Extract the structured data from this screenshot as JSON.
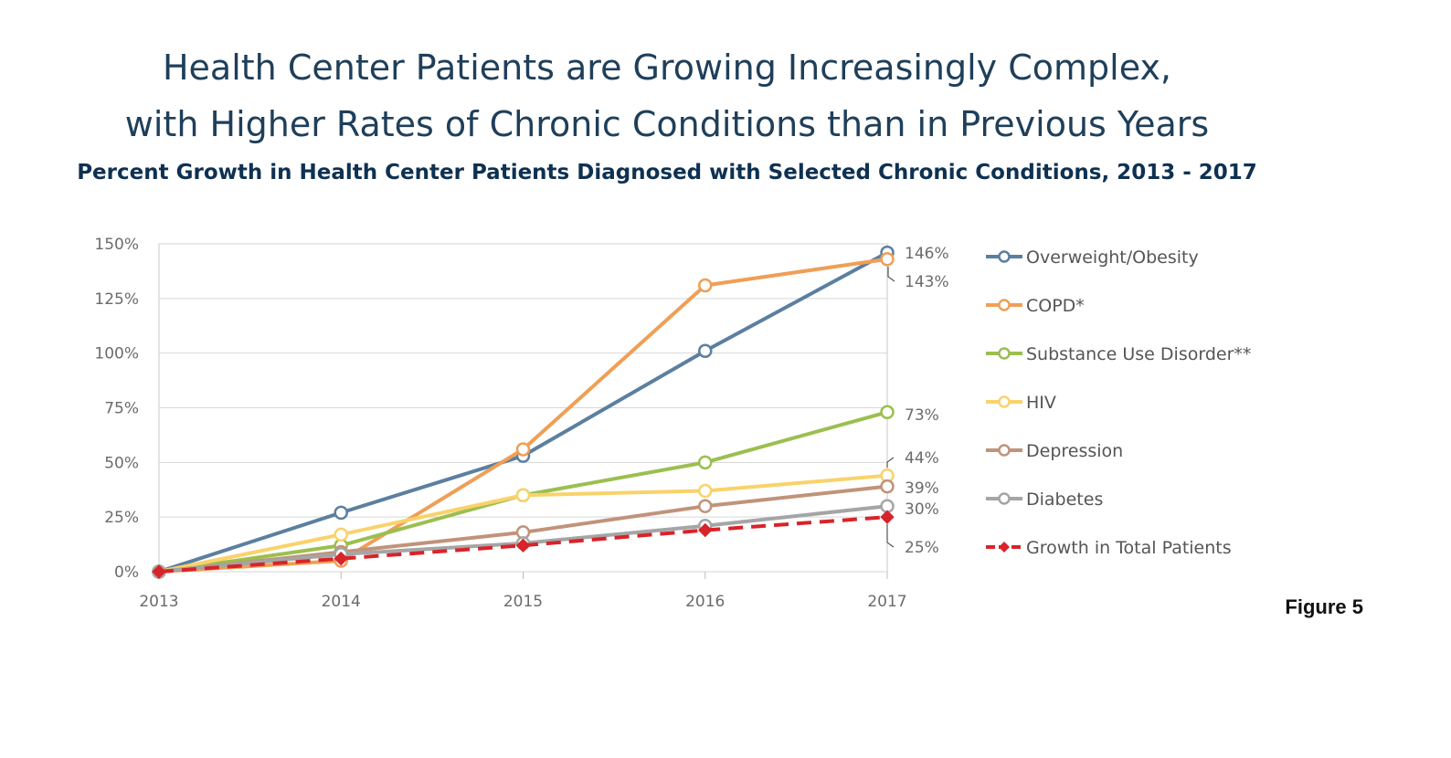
{
  "header": {
    "title_line1": "Health Center Patients are Growing Increasingly Complex,",
    "title_line2": "with Higher Rates of Chronic Conditions than in Previous Years",
    "subtitle": "Percent Growth in Health Center Patients Diagnosed with Selected Chronic Conditions, 2013 - 2017"
  },
  "figure_label": "Figure 5",
  "chart_data": {
    "type": "line",
    "x": [
      "2013",
      "2014",
      "2015",
      "2016",
      "2017"
    ],
    "ylim": [
      0,
      150
    ],
    "yticks": [
      "0%",
      "25%",
      "50%",
      "75%",
      "100%",
      "125%",
      "150%"
    ],
    "grid": true,
    "legend": "right",
    "series": [
      {
        "name": "Overweight/Obesity",
        "color": "#5b7fa0",
        "values": [
          0,
          27,
          53,
          101,
          146
        ],
        "end_label": "146%",
        "marker": "circle",
        "dash": false
      },
      {
        "name": "COPD*",
        "color": "#ef9f55",
        "values": [
          0,
          5,
          56,
          131,
          143
        ],
        "end_label": "143%",
        "marker": "circle",
        "dash": false
      },
      {
        "name": "Substance Use Disorder**",
        "color": "#9bbf4f",
        "values": [
          0,
          12,
          35,
          50,
          73
        ],
        "end_label": "73%",
        "marker": "circle",
        "dash": false
      },
      {
        "name": "HIV",
        "color": "#f9d26a",
        "values": [
          0,
          17,
          35,
          37,
          44
        ],
        "end_label": "44%",
        "marker": "circle",
        "dash": false
      },
      {
        "name": "Depression",
        "color": "#c0937a",
        "values": [
          0,
          9,
          18,
          30,
          39
        ],
        "end_label": "39%",
        "marker": "circle",
        "dash": false
      },
      {
        "name": "Diabetes",
        "color": "#a5a5a5",
        "values": [
          0,
          8,
          13,
          21,
          30
        ],
        "end_label": "30%",
        "marker": "circle",
        "dash": false
      },
      {
        "name": "Growth in Total Patients",
        "color": "#d8232a",
        "values": [
          0,
          6,
          12,
          19,
          25
        ],
        "end_label": "25%",
        "marker": "diamond",
        "dash": true
      }
    ]
  }
}
